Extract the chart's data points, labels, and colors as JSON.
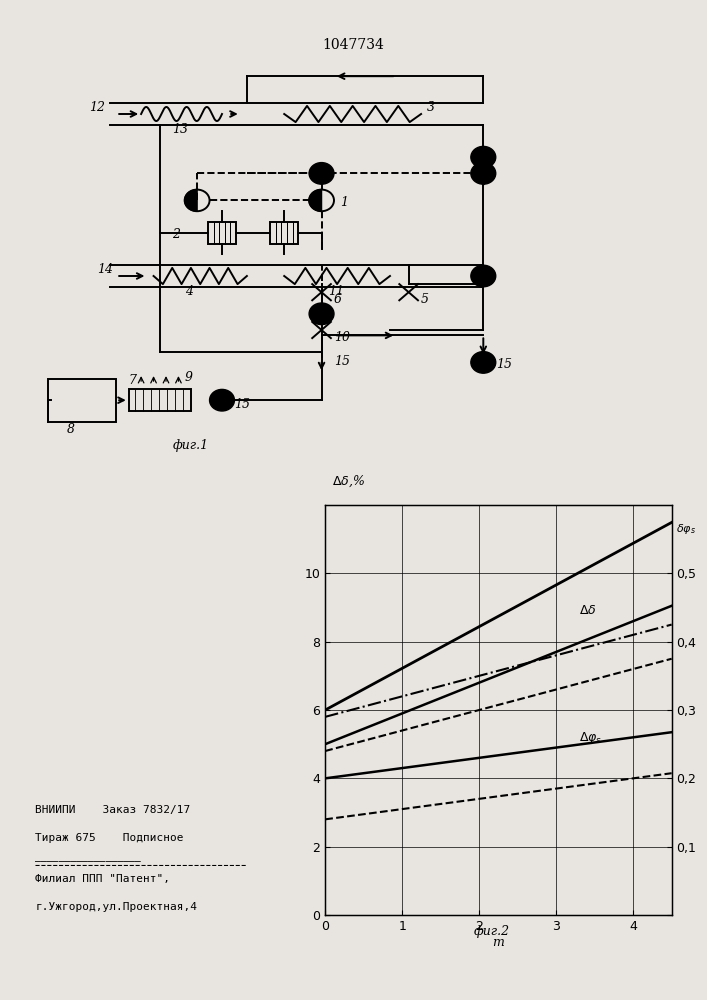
{
  "title": "1047734",
  "fig1_label": "фиг.1",
  "fig2_label": "фиг.2",
  "footer_line1": "ВНИИПИ    Заказ 7832/17",
  "footer_line2": "Тираж 675    Подписное",
  "footer_line3": "Филиал ППП \"Патент\",",
  "footer_line4": "г.Ужгород,ул.Проектная,4",
  "bg_color": "#e8e5e0"
}
